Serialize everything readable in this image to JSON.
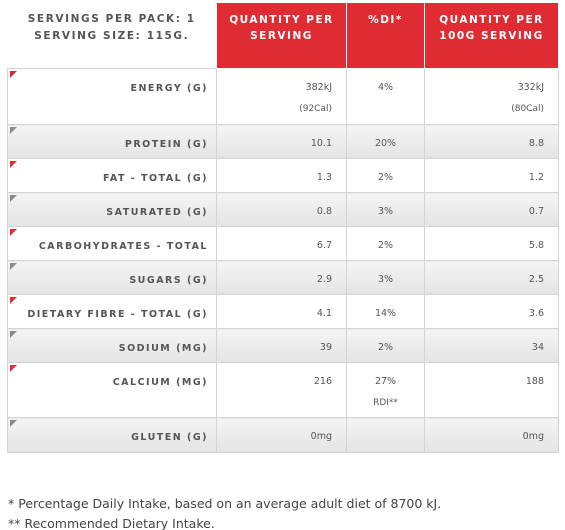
{
  "header": {
    "servings_line": "SERVINGS PER PACK: 1",
    "size_line": "SERVING SIZE: 115G.",
    "col_qty_line1": "QUANTITY PER",
    "col_qty_line2": "SERVING",
    "col_di": "%DI*",
    "col_100_line1": "QUANTITY PER",
    "col_100_line2": "100G SERVING"
  },
  "rows": [
    {
      "label": "ENERGY (G)",
      "qty": "382kJ",
      "qty2": "(92Cal)",
      "di": "4%",
      "di2": "",
      "per100": "332kJ",
      "per1002": "(80Cal)"
    },
    {
      "label": "PROTEIN (G)",
      "qty": "10.1",
      "qty2": "",
      "di": "20%",
      "di2": "",
      "per100": "8.8",
      "per1002": ""
    },
    {
      "label": "FAT - TOTAL (G)",
      "qty": "1.3",
      "qty2": "",
      "di": "2%",
      "di2": "",
      "per100": "1.2",
      "per1002": ""
    },
    {
      "label": "SATURATED (G)",
      "qty": "0.8",
      "qty2": "",
      "di": "3%",
      "di2": "",
      "per100": "0.7",
      "per1002": ""
    },
    {
      "label": "CARBOHYDRATES - TOTAL",
      "qty": "6.7",
      "qty2": "",
      "di": "2%",
      "di2": "",
      "per100": "5.8",
      "per1002": ""
    },
    {
      "label": "SUGARS (G)",
      "qty": "2.9",
      "qty2": "",
      "di": "3%",
      "di2": "",
      "per100": "2.5",
      "per1002": ""
    },
    {
      "label": "DIETARY FIBRE - TOTAL (G)",
      "qty": "4.1",
      "qty2": "",
      "di": "14%",
      "di2": "",
      "per100": "3.6",
      "per1002": ""
    },
    {
      "label": "SODIUM (MG)",
      "qty": "39",
      "qty2": "",
      "di": "2%",
      "di2": "",
      "per100": "34",
      "per1002": ""
    },
    {
      "label": "CALCIUM (MG)",
      "qty": "216",
      "qty2": "",
      "di": "27%",
      "di2": "RDI**",
      "per100": "188",
      "per1002": ""
    },
    {
      "label": "GLUTEN (G)",
      "qty": "0mg",
      "qty2": "",
      "di": "",
      "di2": "",
      "per100": "0mg",
      "per1002": ""
    }
  ],
  "footnotes": {
    "note1": "* Percentage Daily Intake, based on an average adult diet of 8700 kJ.",
    "note2": "** Recommended Dietary Intake."
  },
  "colors": {
    "accent": "#e02b33",
    "marker_grey": "#8a8a8a"
  }
}
